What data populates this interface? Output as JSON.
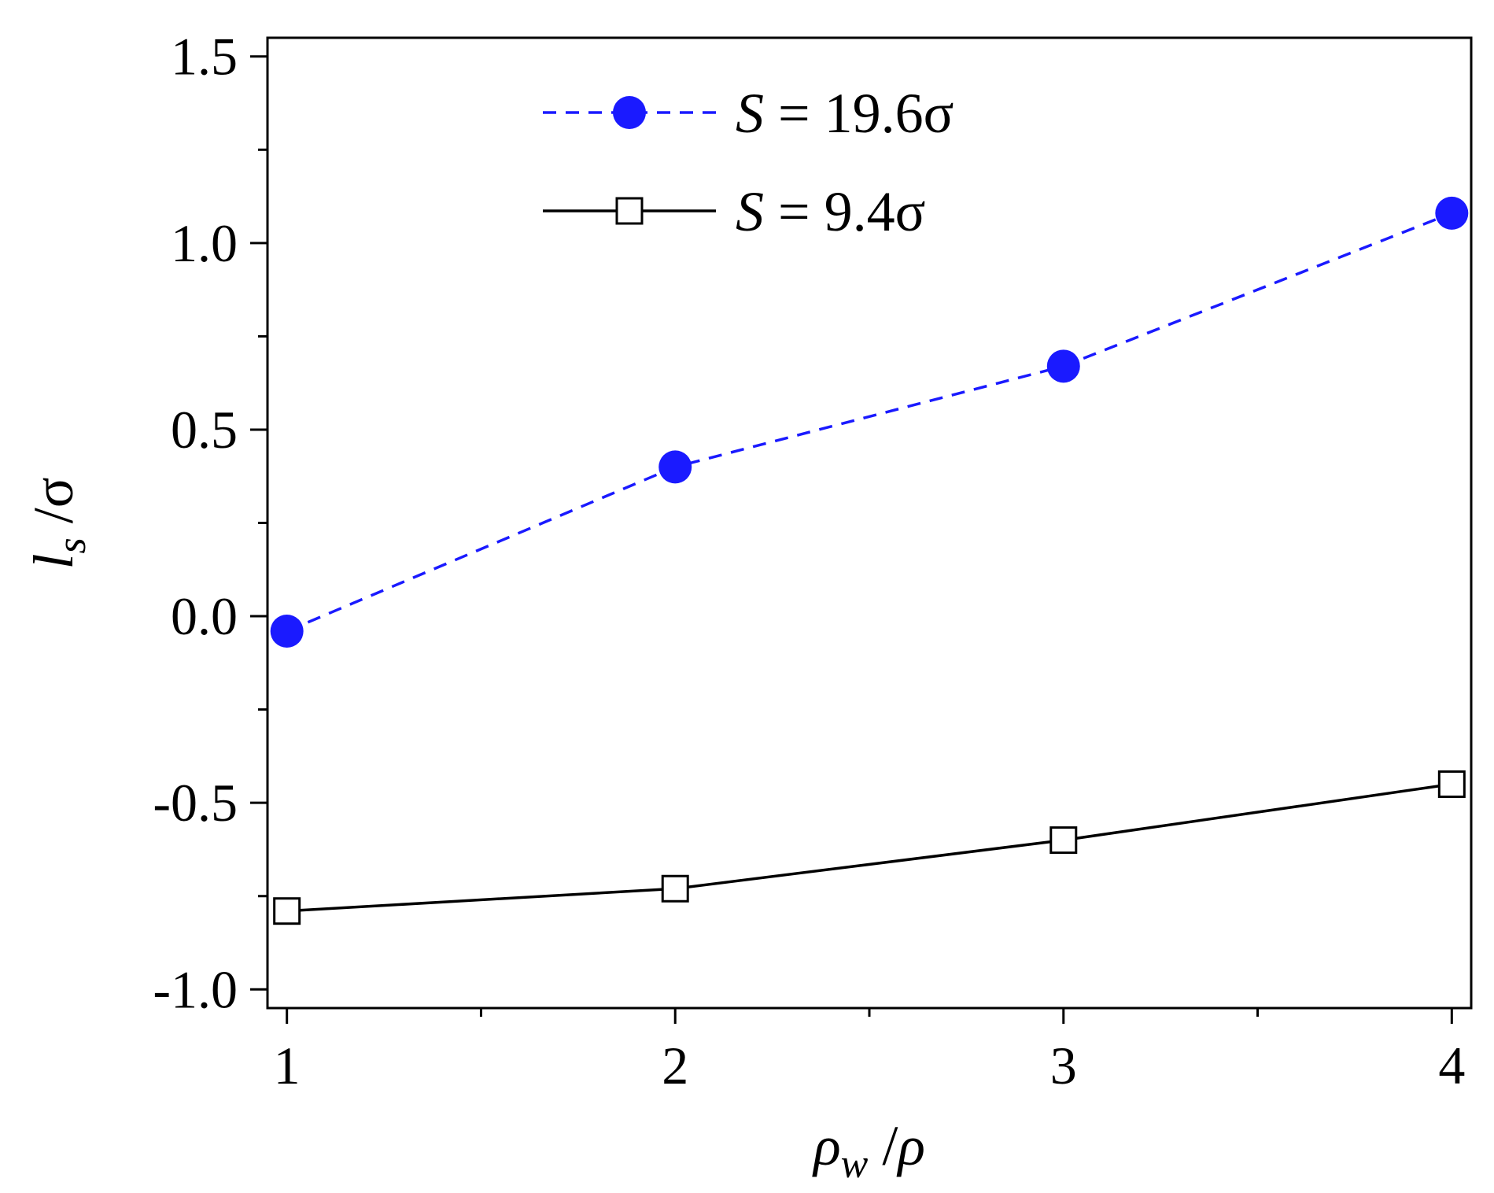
{
  "chart_data": {
    "type": "line",
    "xlabel": "ρ_w /ρ",
    "ylabel": "l_s /σ",
    "xlim": [
      0.95,
      4.05
    ],
    "ylim": [
      -1.05,
      1.55
    ],
    "xticks": [
      1,
      2,
      3,
      4
    ],
    "xtick_labels": [
      "1",
      "2",
      "3",
      "4"
    ],
    "yticks": [
      -1.0,
      -0.5,
      0.0,
      0.5,
      1.0,
      1.5
    ],
    "ytick_labels": [
      "-1.0",
      "-0.5",
      "0.0",
      "0.5",
      "1.0",
      "1.5"
    ],
    "grid": false,
    "legend_position": "top-center",
    "series": [
      {
        "name": "S = 19.6σ",
        "name_parts": {
          "var": "S",
          "rest": " = 19.6σ"
        },
        "x": [
          1,
          2,
          3,
          4
        ],
        "values": [
          -0.04,
          0.4,
          0.67,
          1.08
        ],
        "color": "#1a1aff",
        "line_style": "dashed",
        "marker": "filled-circle"
      },
      {
        "name": "S = 9.4σ",
        "name_parts": {
          "var": "S",
          "rest": " = 9.4σ"
        },
        "x": [
          1,
          2,
          3,
          4
        ],
        "values": [
          -0.79,
          -0.73,
          -0.6,
          -0.45
        ],
        "color": "#000000",
        "line_style": "solid",
        "marker": "open-square"
      }
    ]
  }
}
